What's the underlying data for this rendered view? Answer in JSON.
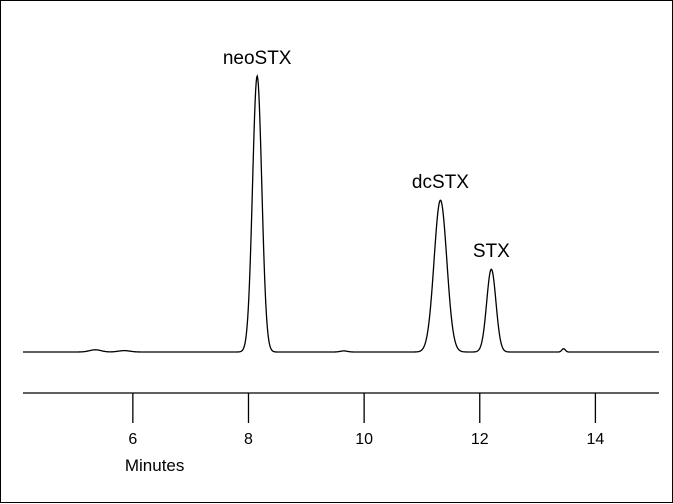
{
  "chart_data": {
    "type": "line",
    "xlabel": "Minutes",
    "ylabel": "",
    "xlim": [
      4.1,
      15.1
    ],
    "ylim": [
      0,
      100
    ],
    "x_ticks": [
      6,
      8,
      10,
      12,
      14
    ],
    "x_tick_labels": [
      "6",
      "8",
      "10",
      "12",
      "14"
    ],
    "grid": false,
    "y_axis_shown": false,
    "line_color": "#000000",
    "baseline": 0,
    "peaks": [
      {
        "name": "neoSTX",
        "time": 8.15,
        "height": 100,
        "width": 0.08
      },
      {
        "name": "dcSTX",
        "time": 11.32,
        "height": 55,
        "width": 0.11
      },
      {
        "name": "STX",
        "time": 12.2,
        "height": 30,
        "width": 0.08
      }
    ],
    "minor_bumps": [
      {
        "time": 5.35,
        "height": 0.8,
        "width": 0.1
      },
      {
        "time": 5.85,
        "height": 0.5,
        "width": 0.1
      },
      {
        "time": 9.65,
        "height": 0.4,
        "width": 0.06
      },
      {
        "time": 13.45,
        "height": 1.2,
        "width": 0.03
      }
    ]
  }
}
